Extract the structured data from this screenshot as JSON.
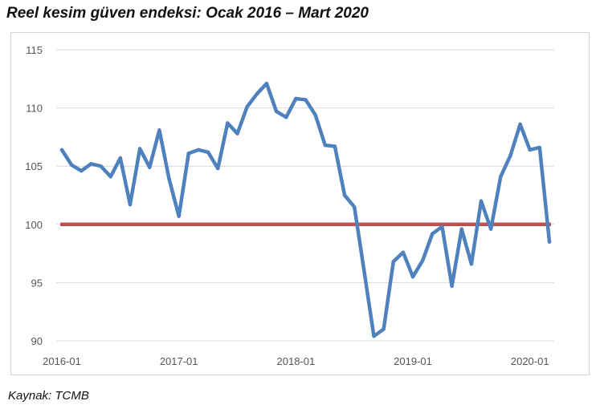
{
  "title": "Reel kesim güven endeksi: Ocak 2016 – Mart 2020",
  "source": "Kaynak: TCMB",
  "colors": {
    "series": "#4f81bd",
    "reference": "#c0504d",
    "grid": "#d9d9d9",
    "tick_text": "#555555"
  },
  "chart_data": {
    "type": "line",
    "title": "Reel kesim güven endeksi: Ocak 2016 – Mart 2020",
    "xlabel": "",
    "ylabel": "",
    "ylim": [
      90,
      115
    ],
    "yticks": [
      90,
      95,
      100,
      105,
      110,
      115
    ],
    "xticks": [
      "2016-01",
      "2017-01",
      "2018-01",
      "2019-01",
      "2020-01"
    ],
    "grid": "horizontal",
    "reference_line": 100,
    "x": [
      "2016-01",
      "2016-02",
      "2016-03",
      "2016-04",
      "2016-05",
      "2016-06",
      "2016-07",
      "2016-08",
      "2016-09",
      "2016-10",
      "2016-11",
      "2016-12",
      "2017-01",
      "2017-02",
      "2017-03",
      "2017-04",
      "2017-05",
      "2017-06",
      "2017-07",
      "2017-08",
      "2017-09",
      "2017-10",
      "2017-11",
      "2017-12",
      "2018-01",
      "2018-02",
      "2018-03",
      "2018-04",
      "2018-05",
      "2018-06",
      "2018-07",
      "2018-08",
      "2018-09",
      "2018-10",
      "2018-11",
      "2018-12",
      "2019-01",
      "2019-02",
      "2019-03",
      "2019-04",
      "2019-05",
      "2019-06",
      "2019-07",
      "2019-08",
      "2019-09",
      "2019-10",
      "2019-11",
      "2019-12",
      "2020-01",
      "2020-02",
      "2020-03"
    ],
    "series": [
      {
        "values": [
          106.4,
          105.1,
          104.6,
          105.2,
          105.0,
          104.1,
          105.7,
          101.7,
          106.5,
          104.9,
          108.1,
          103.9,
          100.7,
          106.1,
          106.4,
          106.2,
          104.8,
          108.7,
          107.8,
          110.1,
          111.2,
          112.1,
          109.7,
          109.2,
          110.8,
          110.7,
          109.4,
          106.8,
          106.7,
          102.5,
          101.5,
          96.0,
          90.4,
          91.0,
          96.8,
          97.6,
          95.5,
          96.9,
          99.2,
          99.8,
          94.7,
          99.6,
          96.6,
          102.0,
          99.6,
          104.1,
          105.9,
          108.6,
          106.4,
          106.6,
          98.5
        ]
      }
    ]
  }
}
